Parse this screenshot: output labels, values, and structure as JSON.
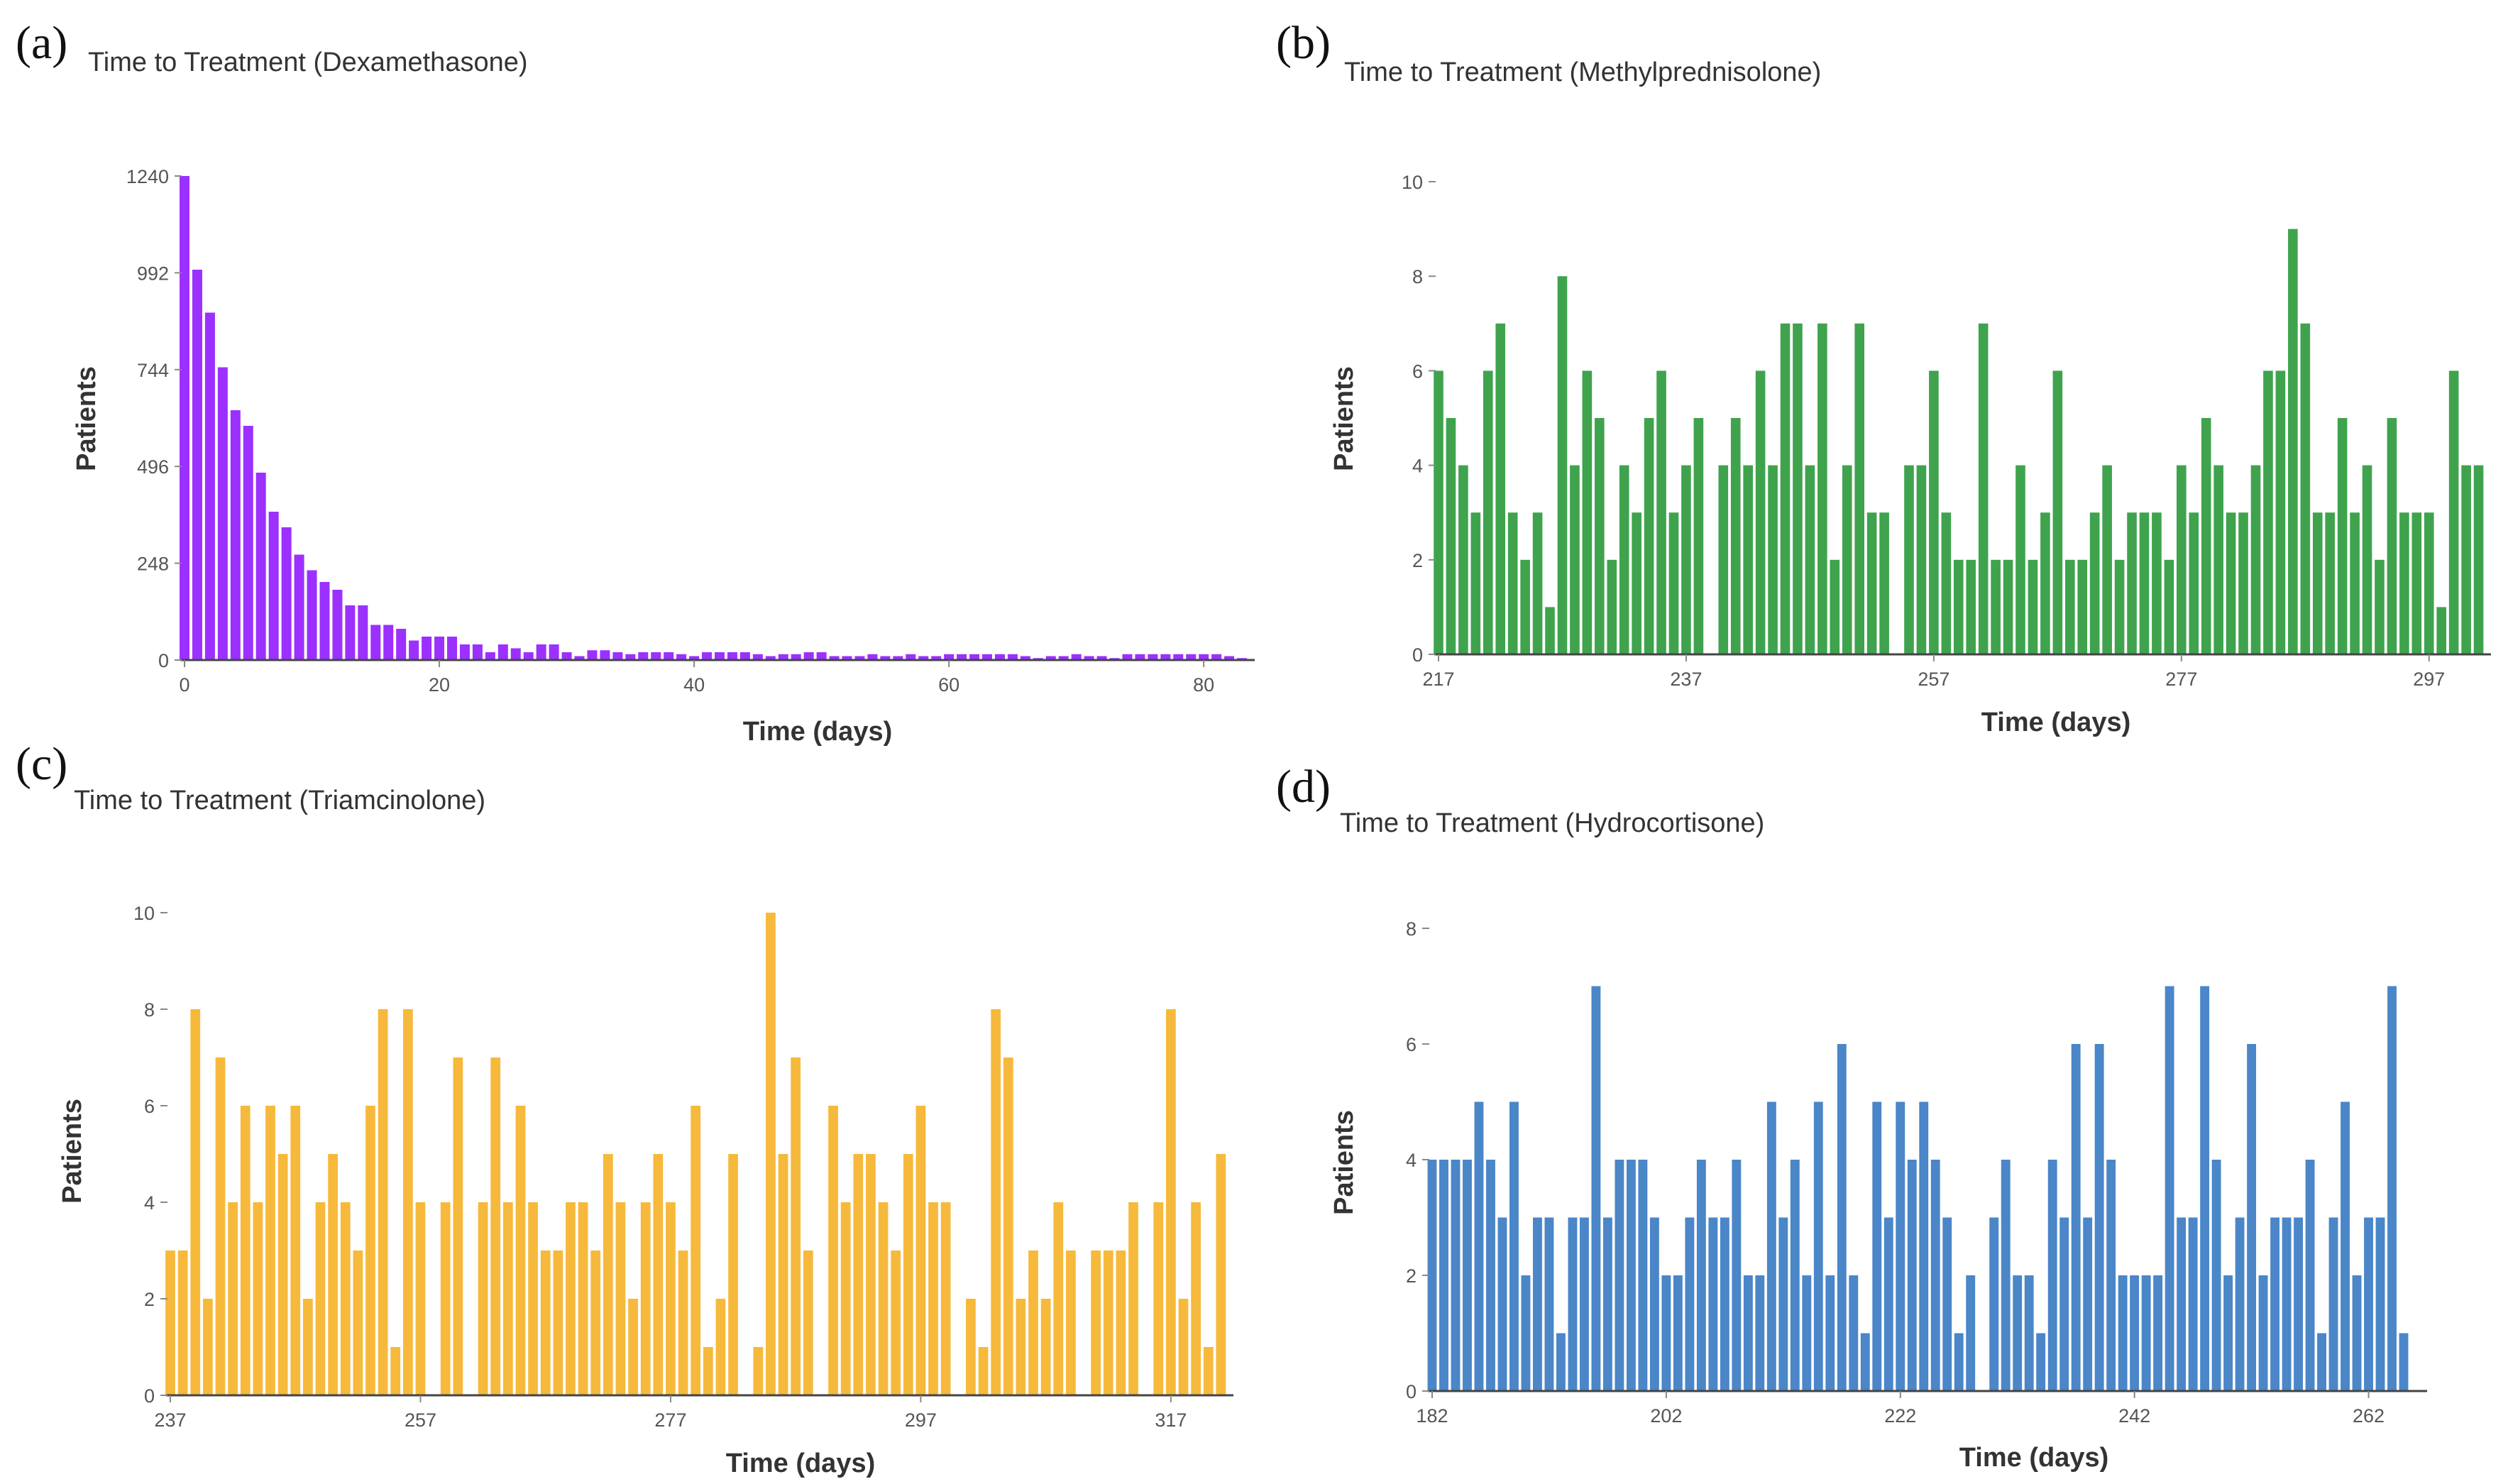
{
  "chart_data": [
    {
      "panel": "(a)",
      "type": "bar",
      "title": "Time to Treatment (Dexamethasone)",
      "xlabel": "Time (days)",
      "ylabel": "Patients",
      "color": "#9B30FF",
      "xlim": [
        0,
        84
      ],
      "ylim": [
        0,
        1240
      ],
      "xticks": [
        0,
        20,
        40,
        60,
        80
      ],
      "yticks": [
        0,
        248,
        496,
        744,
        992,
        1240
      ],
      "x_start": 0,
      "values": [
        1240,
        1000,
        890,
        750,
        640,
        600,
        480,
        380,
        340,
        270,
        230,
        200,
        180,
        140,
        140,
        90,
        90,
        80,
        50,
        60,
        60,
        60,
        40,
        40,
        20,
        40,
        30,
        20,
        40,
        40,
        20,
        10,
        25,
        25,
        20,
        15,
        20,
        20,
        20,
        15,
        10,
        20,
        20,
        20,
        20,
        15,
        10,
        15,
        15,
        20,
        20,
        10,
        10,
        10,
        15,
        10,
        10,
        15,
        10,
        10,
        15,
        15,
        15,
        15,
        15,
        15,
        10,
        5,
        10,
        10,
        15,
        10,
        10,
        5,
        15,
        15,
        15,
        15,
        15,
        15,
        15,
        15,
        10,
        5
      ]
    },
    {
      "panel": "(b)",
      "type": "bar",
      "title": "Time to Treatment (Methylprednisolone)",
      "xlabel": "Time (days)",
      "ylabel": "Patients",
      "color": "#3FA34D",
      "xlim": [
        217,
        302
      ],
      "ylim": [
        0,
        10
      ],
      "xticks": [
        217,
        237,
        257,
        277,
        297
      ],
      "yticks": [
        0,
        2,
        4,
        6,
        8,
        10
      ],
      "x_start": 217,
      "values": [
        6,
        5,
        4,
        3,
        6,
        7,
        3,
        2,
        3,
        1,
        8,
        4,
        6,
        5,
        2,
        4,
        3,
        5,
        6,
        3,
        4,
        5,
        0,
        4,
        5,
        4,
        6,
        4,
        7,
        7,
        4,
        7,
        2,
        4,
        7,
        3,
        3,
        0,
        4,
        4,
        6,
        3,
        2,
        2,
        7,
        2,
        2,
        4,
        2,
        3,
        6,
        2,
        2,
        3,
        4,
        2,
        3,
        3,
        3,
        2,
        4,
        3,
        5,
        4,
        3,
        3,
        4,
        6,
        6,
        9,
        7,
        3,
        3,
        5,
        3,
        4,
        2,
        5,
        3,
        3,
        3,
        1,
        6,
        4,
        4
      ]
    },
    {
      "panel": "(c)",
      "type": "bar",
      "title": "Time to Treatment (Triamcinolone)",
      "xlabel": "Time (days)",
      "ylabel": "Patients",
      "color": "#F6B93B",
      "xlim": [
        237,
        322
      ],
      "ylim": [
        0,
        10
      ],
      "xticks": [
        237,
        257,
        277,
        297,
        317
      ],
      "yticks": [
        0,
        2,
        4,
        6,
        8,
        10
      ],
      "x_start": 237,
      "values": [
        3,
        3,
        8,
        2,
        7,
        4,
        6,
        4,
        6,
        5,
        6,
        2,
        4,
        5,
        4,
        3,
        6,
        8,
        1,
        8,
        4,
        0,
        4,
        7,
        0,
        4,
        7,
        4,
        6,
        4,
        3,
        3,
        4,
        4,
        3,
        5,
        4,
        2,
        4,
        5,
        4,
        3,
        6,
        1,
        2,
        5,
        0,
        1,
        10,
        5,
        7,
        3,
        0,
        6,
        4,
        5,
        5,
        4,
        3,
        5,
        6,
        4,
        4,
        0,
        2,
        1,
        8,
        7,
        2,
        3,
        2,
        4,
        3,
        0,
        3,
        3,
        3,
        4,
        0,
        4,
        8,
        2,
        4,
        1,
        5
      ]
    },
    {
      "panel": "(d)",
      "type": "bar",
      "title": "Time to Treatment (Hydrocortisone)",
      "xlabel": "Time (days)",
      "ylabel": "Patients",
      "color": "#4A86C8",
      "xlim": [
        182,
        267
      ],
      "ylim": [
        0,
        8
      ],
      "xticks": [
        182,
        202,
        222,
        242,
        262
      ],
      "yticks": [
        0,
        2,
        4,
        6,
        8
      ],
      "x_start": 182,
      "values": [
        4,
        4,
        4,
        4,
        5,
        4,
        3,
        5,
        2,
        3,
        3,
        1,
        3,
        3,
        7,
        3,
        4,
        4,
        4,
        3,
        2,
        2,
        3,
        4,
        3,
        3,
        4,
        2,
        2,
        5,
        3,
        4,
        2,
        5,
        2,
        6,
        2,
        1,
        5,
        3,
        5,
        4,
        5,
        4,
        3,
        1,
        2,
        0,
        3,
        4,
        2,
        2,
        1,
        4,
        3,
        6,
        3,
        6,
        4,
        2,
        2,
        2,
        2,
        7,
        3,
        3,
        7,
        4,
        2,
        3,
        6,
        2,
        3,
        3,
        3,
        4,
        1,
        3,
        5,
        2,
        3,
        3,
        7,
        1
      ]
    }
  ]
}
